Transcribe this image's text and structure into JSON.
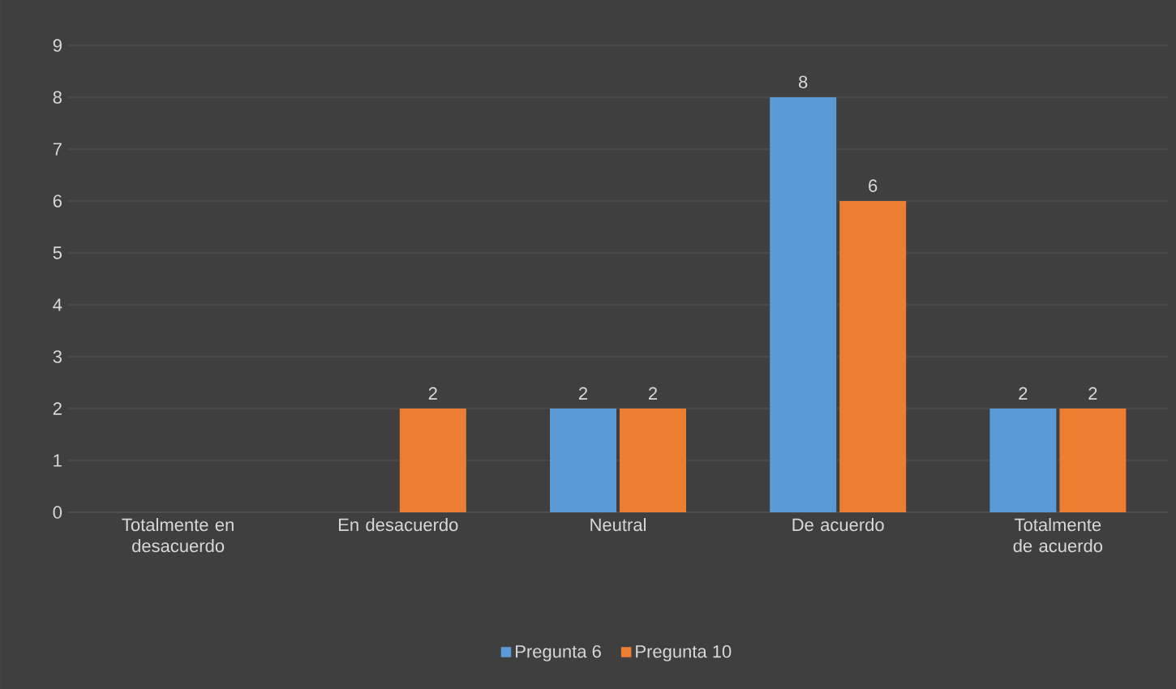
{
  "chart_data": {
    "type": "bar",
    "categories": [
      "Totalmente en desacuerdo",
      "En desacuerdo",
      "Neutral",
      "De acuerdo",
      "Totalmente de acuerdo"
    ],
    "series": [
      {
        "name": "Pregunta 6",
        "color": "#5b9bd5",
        "values": [
          null,
          null,
          2,
          8,
          2
        ]
      },
      {
        "name": "Pregunta 10",
        "color": "#ed7d31",
        "values": [
          null,
          2,
          2,
          6,
          2
        ]
      }
    ],
    "ylim": [
      0,
      9
    ],
    "yticks": [
      0,
      1,
      2,
      3,
      4,
      5,
      6,
      7,
      8,
      9
    ],
    "grid": "y",
    "legend": "bottom",
    "data_labels": true
  }
}
